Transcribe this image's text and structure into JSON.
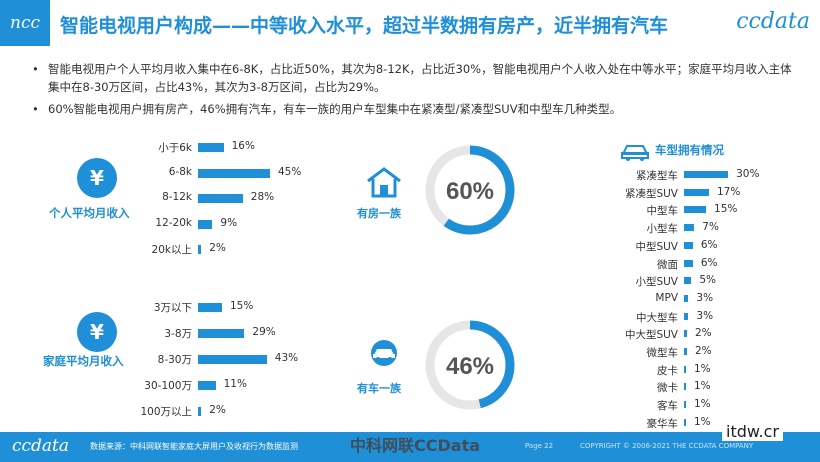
{
  "header": {
    "logo": "ncc",
    "title": "智能电视用户构成——中等收入水平，超过半数拥有房产，近半拥有汽车",
    "brand": "ccdata"
  },
  "bullets": [
    "智能电视用户个人平均月收入集中在6-8K，占比近50%，其次为8-12K，占比近30%，智能电视用户个人收入处在中等水平；家庭平均月收入主体集中在8-30万区间，占比43%，其次为3-8万区间，占比为29%。",
    "60%智能电视用户拥有房产，46%拥有汽车，有车一族的用户车型集中在紧凑型/紧凑型SUV和中型车几种类型。"
  ],
  "chart_data": [
    {
      "type": "bar",
      "title": "个人平均月收入",
      "icon": "yen-icon",
      "categories": [
        "小于6k",
        "6-8k",
        "8-12k",
        "12-20k",
        "20k以上"
      ],
      "values": [
        16,
        45,
        28,
        9,
        2
      ],
      "value_labels": [
        "16%",
        "45%",
        "28%",
        "9%",
        "2%"
      ]
    },
    {
      "type": "bar",
      "title": "家庭平均月收入",
      "icon": "yen-icon",
      "categories": [
        "3万以下",
        "3-8万",
        "8-30万",
        "30-100万",
        "100万以上"
      ],
      "values": [
        15,
        29,
        43,
        11,
        2
      ],
      "value_labels": [
        "15%",
        "29%",
        "43%",
        "11%",
        "2%"
      ]
    },
    {
      "type": "pie",
      "title": "有房一族",
      "icon": "house-icon",
      "value": 60,
      "value_label": "60%"
    },
    {
      "type": "pie",
      "title": "有车一族",
      "icon": "car-icon",
      "value": 46,
      "value_label": "46%"
    },
    {
      "type": "bar",
      "title": "车型拥有情况",
      "icon": "car-icon",
      "categories": [
        "紧凑型车",
        "紧凑型SUV",
        "中型车",
        "小型车",
        "中型SUV",
        "微面",
        "小型SUV",
        "MPV",
        "中大型车",
        "中大型SUV",
        "微型车",
        "皮卡",
        "微卡",
        "客车",
        "豪华车"
      ],
      "values": [
        30,
        17,
        15,
        7,
        6,
        6,
        5,
        3,
        3,
        2,
        2,
        1,
        1,
        1,
        1
      ],
      "value_labels": [
        "30%",
        "17%",
        "15%",
        "7%",
        "6%",
        "6%",
        "5%",
        "3%",
        "3%",
        "2%",
        "2%",
        "1%",
        "1%",
        "1%",
        "1%"
      ]
    }
  ],
  "colors": {
    "accent": "#1f8fd8",
    "track": "#e6e6e6"
  },
  "footer": {
    "brand": "ccdata",
    "source": "数据来源：中科网联智能家庭大屏用户及收视行为数据监测",
    "page": "Page 22",
    "copyright": "COPYRIGHT © 2006-2021 THE CCDATA COMPANY"
  },
  "watermark": {
    "text": "中科网联CCData",
    "site": "itdw.cr"
  }
}
